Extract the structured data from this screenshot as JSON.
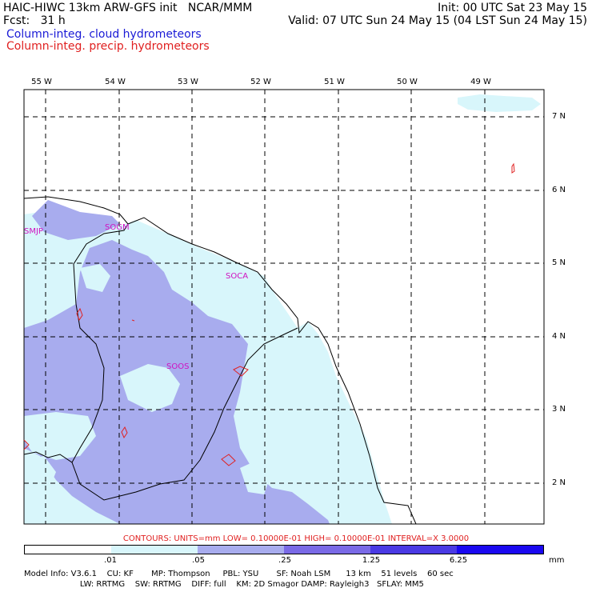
{
  "header": {
    "line1_left": "HAIC-HIWC 13km ARW-GFS init   NCAR/MMM",
    "line1_right": "Init: 00 UTC Sat 23 May 15",
    "line2_left": "Fcst:   31 h",
    "line2_right": "Valid: 07 UTC Sun 24 May 15 (04 LST Sun 24 May 15)",
    "legend_cloud": "Column-integ. cloud hydrometeors",
    "legend_precip": "Column-integ. precip. hydrometeors"
  },
  "colors": {
    "cloud_text": "#1a1ad6",
    "precip_text": "#e02020",
    "station_text": "#d010c0",
    "level1": "#d8f6fb",
    "level2": "#a8acee",
    "level3": "#7a6ae6",
    "level4": "#4a3ae4",
    "level5": "#2a1ae8",
    "level6": "#1a08f0"
  },
  "map": {
    "longitude_labels": [
      "55 W",
      "54 W",
      "53 W",
      "52 W",
      "51 W",
      "50 W",
      "49 W"
    ],
    "latitude_labels": [
      "7 N",
      "6 N",
      "5 N",
      "4 N",
      "3 N",
      "2 N"
    ],
    "stations": [
      "SMJP",
      "SOGM",
      "SOCA",
      "SOOS"
    ]
  },
  "colorbar": {
    "contours": "CONTOURS:  UNITS=mm   LOW= 0.10000E-01   HIGH= 0.10000E-01   INTERVAL=X  3.0000",
    "ticks": [
      ".01",
      ".05",
      ".25",
      "1.25",
      "6.25"
    ],
    "units": "mm"
  },
  "model_info": {
    "line1": "Model Info: V3.6.1    CU: KF       MP: Thompson     PBL: YSU       SF: Noah LSM      13 km    51 levels    60 sec",
    "line2": "                      LW: RRTMG    SW: RRTMG    DIFF: full    KM: 2D Smagor DAMP: Rayleigh3   SFLAY: MM5"
  }
}
